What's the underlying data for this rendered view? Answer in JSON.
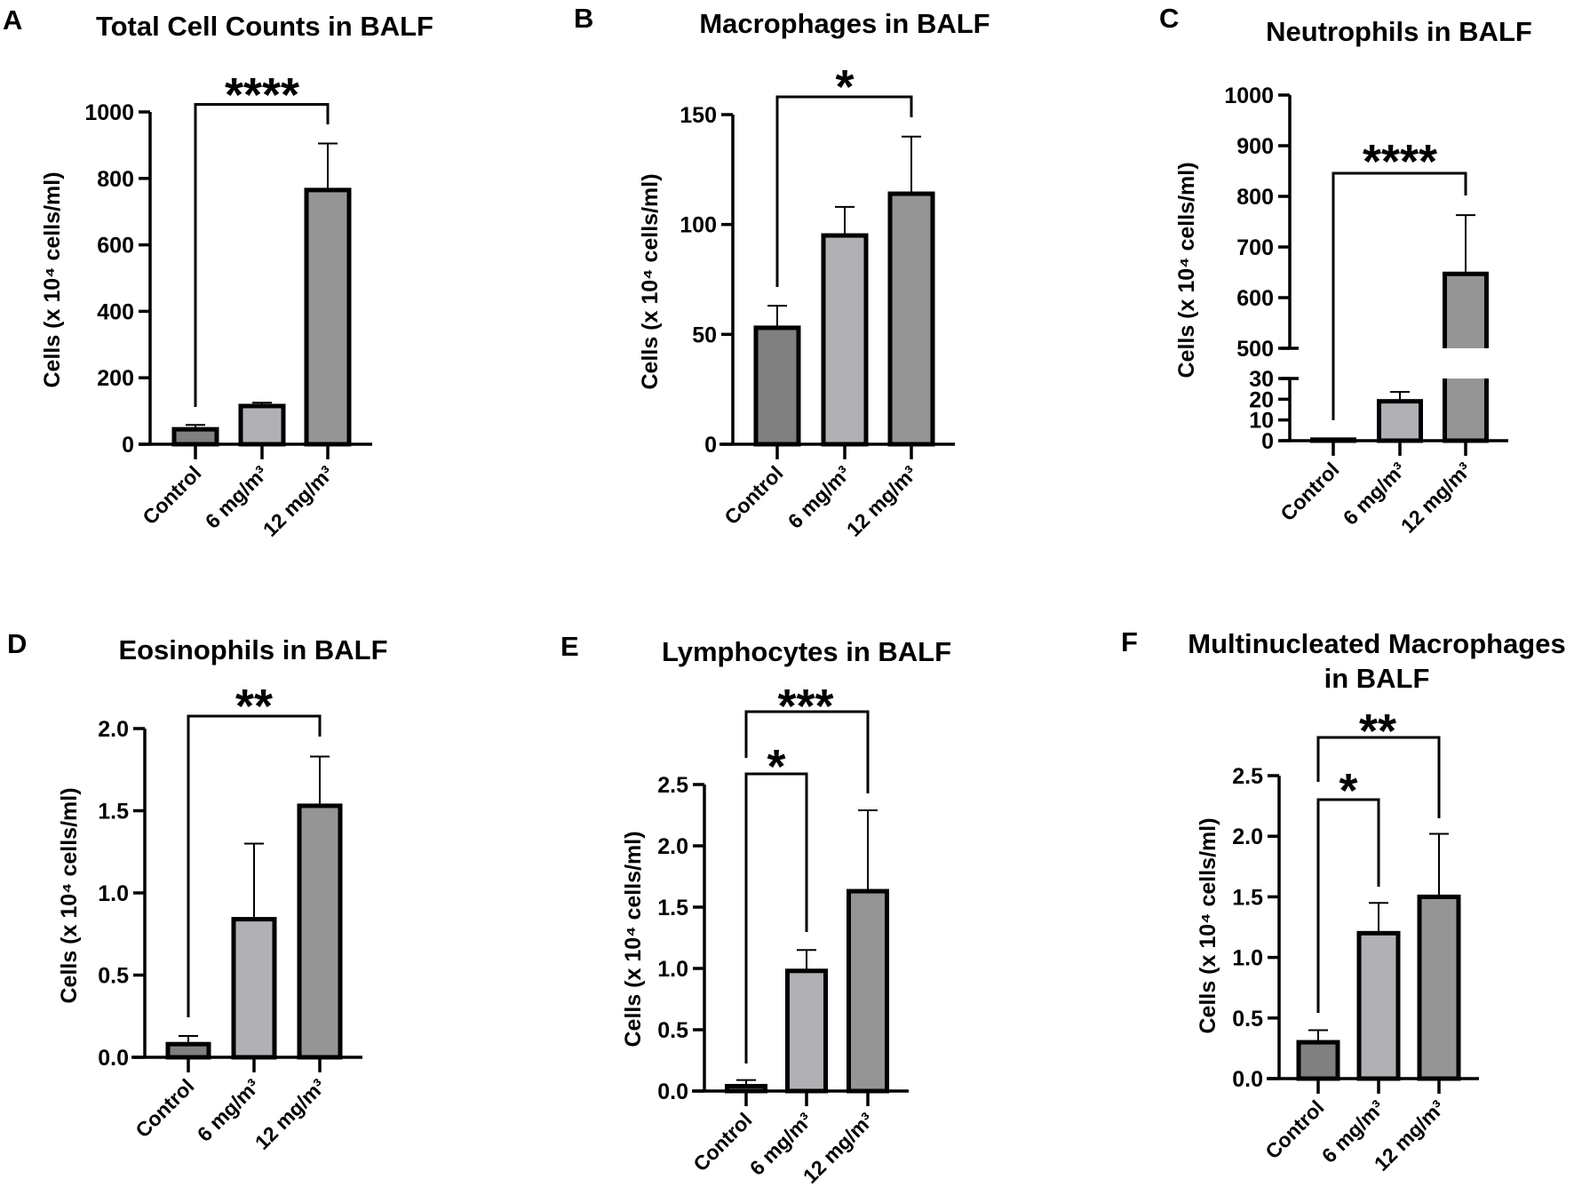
{
  "colors": {
    "Control": "#808080",
    "6 mg/m³": "#b1b1b5",
    "12 mg/m³": "#959595",
    "outline": "#000000"
  },
  "chart_data": [
    {
      "panel": "A",
      "type": "bar",
      "title": "Total Cell Counts in BALF",
      "ylabel": "Cells (x 10⁴ cells/ml)",
      "xlabel": "",
      "categories": [
        "Control",
        "6 mg/m³",
        "12 mg/m³"
      ],
      "values": [
        45,
        115,
        765
      ],
      "errors": [
        13,
        10,
        140
      ],
      "ylim": [
        0,
        1000
      ],
      "yticks": [
        "0",
        "200",
        "400",
        "600",
        "800",
        "1000"
      ],
      "ytick_values": [
        0,
        200,
        400,
        600,
        800,
        1000
      ],
      "comparisons": [
        {
          "from": 0,
          "to": 2,
          "label": "****"
        }
      ],
      "grid": false
    },
    {
      "panel": "B",
      "type": "bar",
      "title": "Macrophages in BALF",
      "ylabel": "Cells (x 10⁴ cells/ml)",
      "xlabel": "",
      "categories": [
        "Control",
        "6 mg/m³",
        "12 mg/m³"
      ],
      "values": [
        53,
        95,
        114
      ],
      "errors": [
        10,
        13,
        26
      ],
      "ylim": [
        0,
        150
      ],
      "yticks": [
        "0",
        "50",
        "100",
        "150"
      ],
      "ytick_values": [
        0,
        50,
        100,
        150
      ],
      "comparisons": [
        {
          "from": 0,
          "to": 2,
          "label": "*"
        }
      ],
      "grid": false
    },
    {
      "panel": "C",
      "type": "bar",
      "title": "Neutrophils in BALF",
      "ylabel": "Cells (x 10⁴ cells/ml)",
      "xlabel": "",
      "categories": [
        "Control",
        "6 mg/m³",
        "12 mg/m³"
      ],
      "values": [
        0.5,
        19,
        647
      ],
      "errors": [
        0,
        4.5,
        116
      ],
      "ylim": [
        0,
        1000
      ],
      "axis_break": [
        30,
        500
      ],
      "yticks": [
        "0",
        "10",
        "20",
        "30",
        "500",
        "600",
        "700",
        "800",
        "900",
        "1000"
      ],
      "ytick_values": [
        0,
        10,
        20,
        30,
        500,
        600,
        700,
        800,
        900,
        1000
      ],
      "comparisons": [
        {
          "from": 0,
          "to": 2,
          "label": "****"
        }
      ],
      "grid": false
    },
    {
      "panel": "D",
      "type": "bar",
      "title": "Eosinophils in BALF",
      "ylabel": "Cells (x 10⁴ cells/ml)",
      "xlabel": "",
      "categories": [
        "Control",
        "6 mg/m³",
        "12 mg/m³"
      ],
      "values": [
        0.08,
        0.84,
        1.53
      ],
      "errors": [
        0.05,
        0.46,
        0.3
      ],
      "ylim": [
        0,
        2.0
      ],
      "yticks": [
        "0.0",
        "0.5",
        "1.0",
        "1.5",
        "2.0"
      ],
      "ytick_values": [
        0,
        0.5,
        1,
        1.5,
        2
      ],
      "comparisons": [
        {
          "from": 0,
          "to": 2,
          "label": "**"
        }
      ],
      "grid": false
    },
    {
      "panel": "E",
      "type": "bar",
      "title": "Lymphocytes in BALF",
      "ylabel": "Cells (x 10⁴ cells/ml)",
      "xlabel": "",
      "categories": [
        "Control",
        "6 mg/m³",
        "12 mg/m³"
      ],
      "values": [
        0.04,
        0.98,
        1.63
      ],
      "errors": [
        0.05,
        0.17,
        0.66
      ],
      "ylim": [
        0,
        2.5
      ],
      "yticks": [
        "0.0",
        "0.5",
        "1.0",
        "1.5",
        "2.0",
        "2.5"
      ],
      "ytick_values": [
        0,
        0.5,
        1,
        1.5,
        2,
        2.5
      ],
      "comparisons": [
        {
          "from": 0,
          "to": 1,
          "label": "*"
        },
        {
          "from": 0,
          "to": 2,
          "label": "***"
        }
      ],
      "grid": false
    },
    {
      "panel": "F",
      "type": "bar",
      "title": "Multinucleated Macrophages",
      "title_line2": "in BALF",
      "ylabel": "Cells (x 10⁴ cells/ml)",
      "xlabel": "",
      "categories": [
        "Control",
        "6 mg/m³",
        "12 mg/m³"
      ],
      "values": [
        0.3,
        1.2,
        1.5
      ],
      "errors": [
        0.1,
        0.25,
        0.52
      ],
      "ylim": [
        0,
        2.5
      ],
      "yticks": [
        "0.0",
        "0.5",
        "1.0",
        "1.5",
        "2.0",
        "2.5"
      ],
      "ytick_values": [
        0,
        0.5,
        1,
        1.5,
        2,
        2.5
      ],
      "comparisons": [
        {
          "from": 0,
          "to": 1,
          "label": "*"
        },
        {
          "from": 0,
          "to": 2,
          "label": "**"
        }
      ],
      "grid": false
    }
  ]
}
